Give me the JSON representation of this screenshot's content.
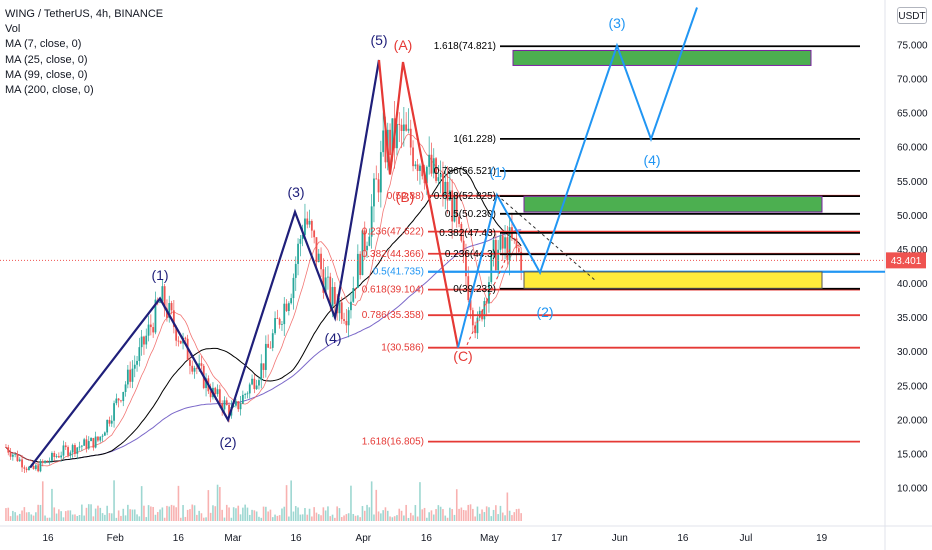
{
  "legend": {
    "title": "WING / TetherUS, 4h, BINANCE",
    "vol": "Vol",
    "ma7": "MA (7, close, 0)",
    "ma25": "MA (25, close, 0)",
    "ma99": "MA (99, close, 0)",
    "ma200": "MA (200, close, 0)"
  },
  "currency_badge": "USDT",
  "last_price": "43.401",
  "colors": {
    "bull": "#26a69a",
    "bear": "#ef5350",
    "wave_navy": "#1f1f7a",
    "projection": "#2196f3",
    "fib_black": "#000000",
    "fib_red": "#e53935",
    "fib_blue": "#2196f3",
    "green_box": "#4caf50",
    "yellow_box": "#ffeb3b",
    "ma_black": "#000000",
    "ma_purple": "#7b68c9"
  },
  "chart_data": {
    "type": "candlestick",
    "y_axis": {
      "ticks": [
        "10.000",
        "15.000",
        "20.000",
        "25.000",
        "30.000",
        "35.000",
        "40.000",
        "45.000",
        "50.000",
        "55.000",
        "60.000",
        "65.000",
        "70.000",
        "75.000"
      ],
      "range": [
        5.5,
        81.5
      ]
    },
    "x_axis": {
      "ticks": [
        "16",
        "Feb",
        "16",
        "Mar",
        "16",
        "Apr",
        "16",
        "May",
        "17",
        "Jun",
        "16",
        "Jul",
        "19"
      ]
    },
    "grid": false,
    "price_path": [
      {
        "date": "2021-01-06",
        "price": 16.0
      },
      {
        "date": "2021-01-12",
        "price": 12.5
      },
      {
        "date": "2021-01-20",
        "price": 15.5
      },
      {
        "date": "2021-01-28",
        "price": 17.0
      },
      {
        "date": "2021-02-07",
        "price": 30.0
      },
      {
        "date": "2021-02-12",
        "price": 37.8
      },
      {
        "date": "2021-02-18",
        "price": 30.0
      },
      {
        "date": "2021-02-24",
        "price": 24.0
      },
      {
        "date": "2021-03-01",
        "price": 21.0
      },
      {
        "date": "2021-03-08",
        "price": 28.0
      },
      {
        "date": "2021-03-15",
        "price": 40.0
      },
      {
        "date": "2021-03-18",
        "price": 50.0
      },
      {
        "date": "2021-03-24",
        "price": 38.0
      },
      {
        "date": "2021-03-28",
        "price": 36.0
      },
      {
        "date": "2021-04-02",
        "price": 48.0
      },
      {
        "date": "2021-04-06",
        "price": 60.0
      },
      {
        "date": "2021-04-10",
        "price": 62.0
      },
      {
        "date": "2021-04-15",
        "price": 58.0
      },
      {
        "date": "2021-04-22",
        "price": 52.0
      },
      {
        "date": "2021-04-28",
        "price": 33.0
      },
      {
        "date": "2021-05-02",
        "price": 44.0
      },
      {
        "date": "2021-05-06",
        "price": 46.0
      },
      {
        "date": "2021-05-09",
        "price": 43.4
      }
    ],
    "wave_labels": [
      "(1)",
      "(2)",
      "(3)",
      "(4)",
      "(5)",
      "(A)",
      "(B)",
      "(C)"
    ],
    "projection_labels": [
      "(1)",
      "(2)",
      "(3)",
      "(4)"
    ],
    "fib_retracement_levels": [
      {
        "label": "1(30.586)",
        "price": 30.586
      },
      {
        "label": "0.786(35.358)",
        "price": 35.358
      },
      {
        "label": "0.618(39.104)",
        "price": 39.104
      },
      {
        "label": "0.5(41.735)",
        "price": 41.735
      },
      {
        "label": "0.382(44.366)",
        "price": 44.366
      },
      {
        "label": "0.236(47.622)",
        "price": 47.622
      },
      {
        "label": "0(52.88)",
        "price": 52.88
      },
      {
        "label": "1.618(16.805)",
        "price": 16.805
      }
    ],
    "fib_extension_levels": [
      {
        "label": "0(39.232)",
        "price": 39.232
      },
      {
        "label": "0.236(44.3)",
        "price": 44.3
      },
      {
        "label": "0.382(47.43)",
        "price": 47.43
      },
      {
        "label": "0.5(50.230)",
        "price": 50.23
      },
      {
        "label": "0.618(52.825)",
        "price": 52.825
      },
      {
        "label": "0.786(56.521)",
        "price": 56.521
      },
      {
        "label": "1(61.228)",
        "price": 61.228
      },
      {
        "label": "1.618(74.821)",
        "price": 74.821
      }
    ],
    "target_zones": [
      {
        "name": "green_upper",
        "from": 72.0,
        "to": 74.2
      },
      {
        "name": "green_mid",
        "from": 50.5,
        "to": 52.8
      },
      {
        "name": "yellow",
        "from": 39.3,
        "to": 41.7
      }
    ]
  }
}
